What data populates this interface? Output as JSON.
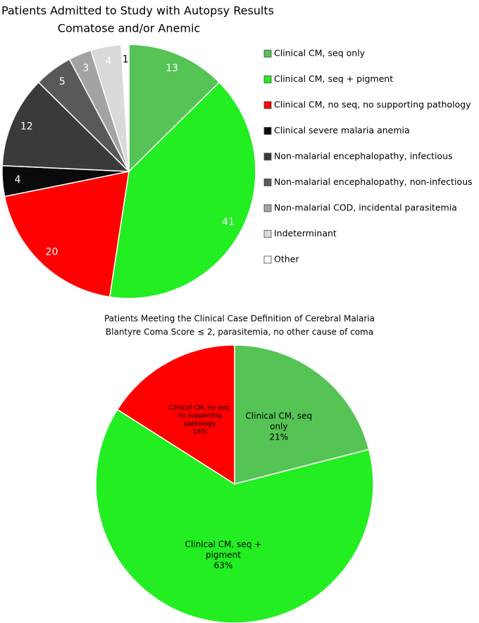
{
  "chart_data": [
    {
      "type": "pie",
      "title": "All Patients Admitted to Study with Autopsy Results",
      "subtitle": "Comatose and/or Anemic",
      "categories": [
        "Clinical CM, seq only",
        "Clinical CM, seq + pigment",
        "Clinical CM, no seq, no supporting pathology",
        "Clinical severe malaria anemia",
        "Non-malarial encephalopathy, infectious",
        "Non-malarial encephalopathy, non-infectious",
        "Non-malarial COD, incidental parasitemia",
        "Indeterminant",
        "Other"
      ],
      "values": [
        13,
        41,
        20,
        4,
        12,
        5,
        3,
        4,
        1
      ],
      "colors": [
        "#55c455",
        "#22ee22",
        "#ff0000",
        "#0a0a0a",
        "#3a3a3a",
        "#595959",
        "#a3a3a3",
        "#d9d9d9",
        "#ffffff"
      ],
      "legend": "right"
    },
    {
      "type": "pie",
      "title": "Patients Meeting the Clinical Case Definition of Cerebral Malaria",
      "subtitle": "Blantyre Coma Score ≤ 2, parasitemia, no other cause of coma",
      "categories": [
        "Clinical CM, seq only",
        "Clinical CM, seq + pigment",
        "Clinical CM, no seq, no supporting pathology"
      ],
      "values": [
        21,
        63,
        16
      ],
      "value_labels": [
        "21%",
        "63%",
        "16%"
      ],
      "colors": [
        "#55c455",
        "#22ee22",
        "#ff0000"
      ]
    }
  ]
}
